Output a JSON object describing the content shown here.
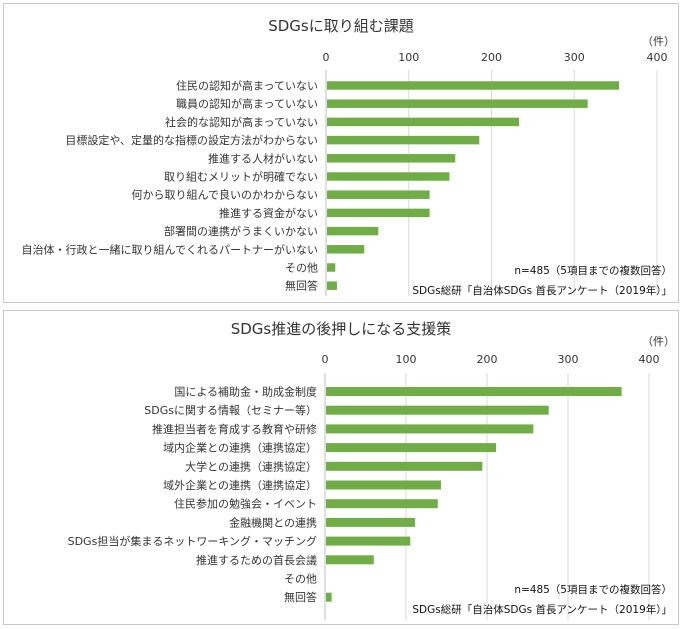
{
  "chart_data": [
    {
      "type": "bar",
      "orientation": "horizontal",
      "title": "SDGsに取り組む課題",
      "unit": "（件）",
      "xlim": [
        0,
        400
      ],
      "xticks": [
        "0",
        "100",
        "200",
        "300",
        "400"
      ],
      "grid": true,
      "color": "#70ad47",
      "categories": [
        "住民の認知が高まっていない",
        "職員の認知が高まっていない",
        "社会的な認知が高まっていない",
        "目標設定や、定量的な指標の設定方法がわからない",
        "推進する人材がいない",
        "取り組むメリットが明確でない",
        "何から取り組んで良いのかわからない",
        "推進する資金がない",
        "部署間の連携がうまくいかない",
        "自治体・行政と一緒に取り組んでくれるパートナーがいない",
        "その他",
        "無回答"
      ],
      "values": [
        353,
        315,
        232,
        184,
        155,
        148,
        124,
        124,
        62,
        45,
        10,
        12
      ],
      "note1": "n=485（5項目までの複数回答）",
      "note2": "SDGs総研「自治体SDGs 首長アンケート（2019年）」"
    },
    {
      "type": "bar",
      "orientation": "horizontal",
      "title": "SDGs推進の後押しになる支援策",
      "unit": "（件）",
      "xlim": [
        0,
        400
      ],
      "xticks": [
        "0",
        "100",
        "200",
        "300",
        "400"
      ],
      "grid": true,
      "color": "#70ad47",
      "categories": [
        "国による補助金・助成金制度",
        "SDGsに関する情報（セミナー等）",
        "推進担当者を育成する教育や研修",
        "域内企業との連携（連携協定）",
        "大学との連携（連携協定）",
        "域外企業との連携（連携協定）",
        "住民参加の勉強会・イベント",
        "金融機関との連携",
        "SDGs担当が集まるネットワーキング・マッチング",
        "推進するための首長会議",
        "その他",
        "無回答"
      ],
      "values": [
        365,
        275,
        256,
        210,
        193,
        142,
        138,
        110,
        104,
        59,
        0,
        7
      ],
      "note1": "n=485（5項目までの複数回答）",
      "note2": "SDGs総研「自治体SDGs 首長アンケート（2019年）」"
    }
  ]
}
